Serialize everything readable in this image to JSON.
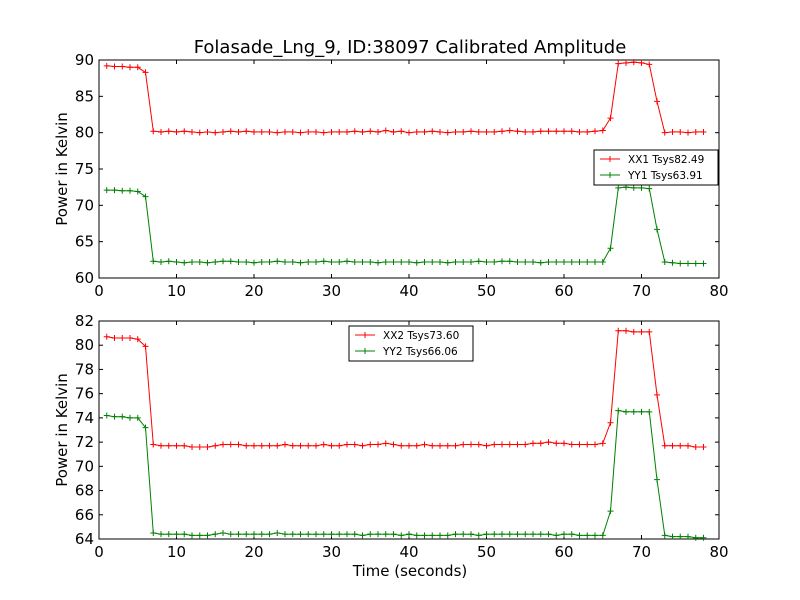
{
  "chart_data": [
    {
      "type": "line",
      "title": "Folasade_Lng_9, ID:38097 Calibrated Amplitude",
      "xlabel": "",
      "ylabel": "Power in Kelvin",
      "xlim": [
        0,
        80
      ],
      "ylim": [
        60,
        90
      ],
      "xticks": [
        0,
        10,
        20,
        30,
        40,
        50,
        60,
        70,
        80
      ],
      "yticks": [
        60,
        65,
        70,
        75,
        80,
        85,
        90
      ],
      "legend_position": "center-right",
      "series": [
        {
          "name": "XX1 Tsys82.49",
          "color": "#ff0000",
          "x": [
            1,
            2,
            3,
            4,
            5,
            6,
            7,
            8,
            9,
            10,
            11,
            12,
            13,
            14,
            15,
            16,
            17,
            18,
            19,
            20,
            21,
            22,
            23,
            24,
            25,
            26,
            27,
            28,
            29,
            30,
            31,
            32,
            33,
            34,
            35,
            36,
            37,
            38,
            39,
            40,
            41,
            42,
            43,
            44,
            45,
            46,
            47,
            48,
            49,
            50,
            51,
            52,
            53,
            54,
            55,
            56,
            57,
            58,
            59,
            60,
            61,
            62,
            63,
            64,
            65,
            66,
            67,
            68,
            69,
            70,
            71,
            72,
            73,
            74,
            75,
            76,
            77,
            78
          ],
          "values": [
            89.2,
            89.1,
            89.1,
            89.0,
            89.0,
            88.3,
            80.2,
            80.1,
            80.2,
            80.1,
            80.2,
            80.1,
            80.0,
            80.1,
            80.0,
            80.1,
            80.2,
            80.1,
            80.2,
            80.1,
            80.1,
            80.1,
            80.0,
            80.1,
            80.1,
            80.0,
            80.1,
            80.1,
            80.0,
            80.1,
            80.1,
            80.1,
            80.2,
            80.1,
            80.2,
            80.1,
            80.3,
            80.1,
            80.2,
            80.0,
            80.1,
            80.1,
            80.2,
            80.1,
            80.0,
            80.1,
            80.1,
            80.2,
            80.1,
            80.1,
            80.1,
            80.2,
            80.3,
            80.2,
            80.1,
            80.1,
            80.2,
            80.2,
            80.2,
            80.2,
            80.2,
            80.1,
            80.1,
            80.2,
            80.3,
            82.0,
            89.5,
            89.6,
            89.7,
            89.6,
            89.4,
            84.3,
            80.0,
            80.1,
            80.1,
            80.0,
            80.1,
            80.1
          ]
        },
        {
          "name": "YY1 Tsys63.91",
          "color": "#008000",
          "x": [
            1,
            2,
            3,
            4,
            5,
            6,
            7,
            8,
            9,
            10,
            11,
            12,
            13,
            14,
            15,
            16,
            17,
            18,
            19,
            20,
            21,
            22,
            23,
            24,
            25,
            26,
            27,
            28,
            29,
            30,
            31,
            32,
            33,
            34,
            35,
            36,
            37,
            38,
            39,
            40,
            41,
            42,
            43,
            44,
            45,
            46,
            47,
            48,
            49,
            50,
            51,
            52,
            53,
            54,
            55,
            56,
            57,
            58,
            59,
            60,
            61,
            62,
            63,
            64,
            65,
            66,
            67,
            68,
            69,
            70,
            71,
            72,
            73,
            74,
            75,
            76,
            77,
            78
          ],
          "values": [
            72.1,
            72.1,
            72.0,
            72.0,
            71.9,
            71.2,
            62.3,
            62.2,
            62.3,
            62.2,
            62.1,
            62.2,
            62.2,
            62.1,
            62.2,
            62.3,
            62.3,
            62.2,
            62.2,
            62.1,
            62.2,
            62.2,
            62.3,
            62.2,
            62.2,
            62.1,
            62.2,
            62.2,
            62.3,
            62.2,
            62.2,
            62.3,
            62.2,
            62.2,
            62.2,
            62.1,
            62.2,
            62.2,
            62.2,
            62.2,
            62.1,
            62.2,
            62.2,
            62.2,
            62.1,
            62.2,
            62.2,
            62.2,
            62.3,
            62.2,
            62.2,
            62.3,
            62.3,
            62.2,
            62.2,
            62.2,
            62.1,
            62.2,
            62.2,
            62.2,
            62.2,
            62.2,
            62.2,
            62.2,
            62.2,
            64.1,
            72.4,
            72.5,
            72.4,
            72.4,
            72.3,
            66.7,
            62.2,
            62.1,
            62.0,
            62.0,
            62.0,
            62.0
          ]
        }
      ]
    },
    {
      "type": "line",
      "title": "",
      "xlabel": "Time (seconds)",
      "ylabel": "Power in Kelvin",
      "xlim": [
        0,
        80
      ],
      "ylim": [
        64,
        82
      ],
      "xticks": [
        0,
        10,
        20,
        30,
        40,
        50,
        60,
        70,
        80
      ],
      "yticks": [
        64,
        66,
        68,
        70,
        72,
        74,
        76,
        78,
        80,
        82
      ],
      "legend_position": "upper-center",
      "series": [
        {
          "name": "XX2 Tsys73.60",
          "color": "#ff0000",
          "x": [
            1,
            2,
            3,
            4,
            5,
            6,
            7,
            8,
            9,
            10,
            11,
            12,
            13,
            14,
            15,
            16,
            17,
            18,
            19,
            20,
            21,
            22,
            23,
            24,
            25,
            26,
            27,
            28,
            29,
            30,
            31,
            32,
            33,
            34,
            35,
            36,
            37,
            38,
            39,
            40,
            41,
            42,
            43,
            44,
            45,
            46,
            47,
            48,
            49,
            50,
            51,
            52,
            53,
            54,
            55,
            56,
            57,
            58,
            59,
            60,
            61,
            62,
            63,
            64,
            65,
            66,
            67,
            68,
            69,
            70,
            71,
            72,
            73,
            74,
            75,
            76,
            77,
            78
          ],
          "values": [
            80.7,
            80.6,
            80.6,
            80.6,
            80.5,
            79.9,
            71.8,
            71.7,
            71.7,
            71.7,
            71.7,
            71.6,
            71.6,
            71.6,
            71.7,
            71.8,
            71.8,
            71.8,
            71.7,
            71.7,
            71.7,
            71.7,
            71.7,
            71.8,
            71.7,
            71.7,
            71.7,
            71.7,
            71.8,
            71.7,
            71.7,
            71.8,
            71.8,
            71.7,
            71.8,
            71.8,
            71.9,
            71.8,
            71.7,
            71.7,
            71.7,
            71.8,
            71.7,
            71.7,
            71.7,
            71.7,
            71.8,
            71.8,
            71.8,
            71.7,
            71.8,
            71.8,
            71.8,
            71.8,
            71.8,
            71.9,
            71.9,
            72.0,
            71.9,
            71.9,
            71.8,
            71.8,
            71.8,
            71.8,
            71.9,
            73.6,
            81.2,
            81.2,
            81.1,
            81.1,
            81.1,
            75.9,
            71.7,
            71.7,
            71.7,
            71.7,
            71.6,
            71.6
          ]
        },
        {
          "name": "YY2 Tsys66.06",
          "color": "#008000",
          "x": [
            1,
            2,
            3,
            4,
            5,
            6,
            7,
            8,
            9,
            10,
            11,
            12,
            13,
            14,
            15,
            16,
            17,
            18,
            19,
            20,
            21,
            22,
            23,
            24,
            25,
            26,
            27,
            28,
            29,
            30,
            31,
            32,
            33,
            34,
            35,
            36,
            37,
            38,
            39,
            40,
            41,
            42,
            43,
            44,
            45,
            46,
            47,
            48,
            49,
            50,
            51,
            52,
            53,
            54,
            55,
            56,
            57,
            58,
            59,
            60,
            61,
            62,
            63,
            64,
            65,
            66,
            67,
            68,
            69,
            70,
            71,
            72,
            73,
            74,
            75,
            76,
            77,
            78
          ],
          "values": [
            74.2,
            74.1,
            74.1,
            74.0,
            74.0,
            73.2,
            64.5,
            64.4,
            64.4,
            64.4,
            64.4,
            64.3,
            64.3,
            64.3,
            64.4,
            64.5,
            64.4,
            64.4,
            64.4,
            64.4,
            64.4,
            64.4,
            64.5,
            64.4,
            64.4,
            64.4,
            64.4,
            64.4,
            64.4,
            64.4,
            64.4,
            64.4,
            64.4,
            64.3,
            64.4,
            64.4,
            64.4,
            64.4,
            64.3,
            64.4,
            64.3,
            64.3,
            64.3,
            64.3,
            64.3,
            64.4,
            64.4,
            64.4,
            64.3,
            64.4,
            64.4,
            64.4,
            64.4,
            64.4,
            64.4,
            64.4,
            64.4,
            64.4,
            64.3,
            64.4,
            64.4,
            64.3,
            64.3,
            64.3,
            64.3,
            66.3,
            74.6,
            74.5,
            74.5,
            74.5,
            74.5,
            68.9,
            64.3,
            64.2,
            64.2,
            64.2,
            64.1,
            64.1
          ]
        }
      ]
    }
  ]
}
